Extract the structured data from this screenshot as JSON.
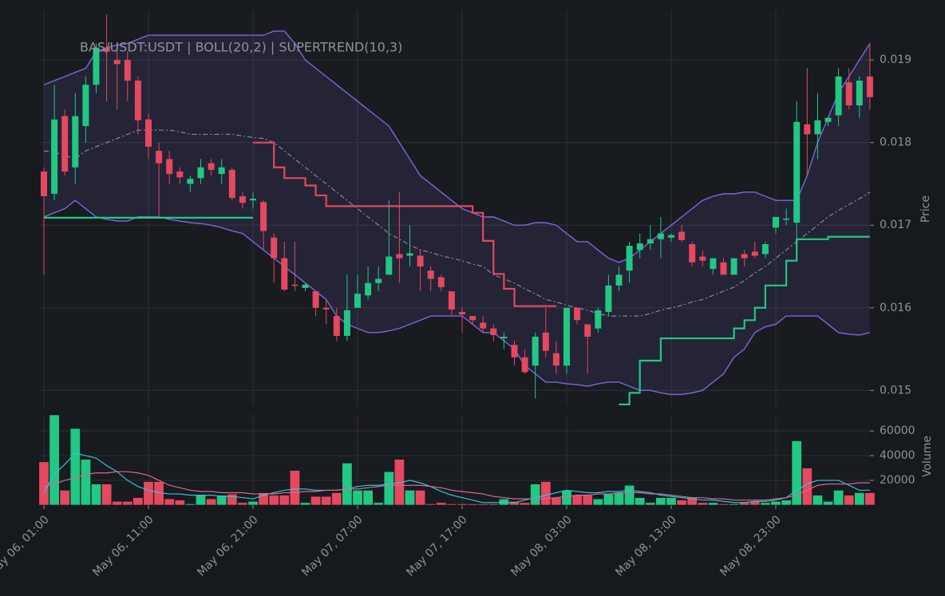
{
  "chart_data": {
    "type": "candlestick",
    "title": "BAS/USDT:USDT | BOLL(20,2) | SUPERTREND(10,3)",
    "ylabel": "Price",
    "categories": [
      "May 06, 01:00",
      null,
      null,
      null,
      null,
      null,
      null,
      null,
      null,
      null,
      "May 06, 11:00",
      null,
      null,
      null,
      null,
      null,
      null,
      null,
      null,
      null,
      "May 06, 21:00",
      null,
      null,
      null,
      null,
      null,
      null,
      null,
      null,
      null,
      "May 07, 07:00",
      null,
      null,
      null,
      null,
      null,
      null,
      null,
      null,
      null,
      "May 07, 17:00",
      null,
      null,
      null,
      null,
      null,
      null,
      null,
      null,
      null,
      "May 08, 03:00",
      null,
      null,
      null,
      null,
      null,
      null,
      null,
      null,
      null,
      "May 08, 13:00",
      null,
      null,
      null,
      null,
      null,
      null,
      null,
      null,
      null,
      "May 08, 23:00",
      null,
      null,
      null,
      null,
      null,
      null,
      null,
      null,
      null
    ],
    "open": [
      0.01765,
      0.01738,
      0.01832,
      0.0177,
      0.0182,
      0.0187,
      0.01915,
      0.019,
      0.019,
      0.01875,
      0.01828,
      0.0179,
      0.0178,
      0.01765,
      0.0175,
      0.01757,
      0.01775,
      0.01762,
      0.01767,
      0.01735,
      0.0173,
      0.01728,
      0.01685,
      0.0166,
      0.01628,
      0.01624,
      0.0162,
      0.016,
      0.0159,
      0.01566,
      0.016,
      0.01615,
      0.0163,
      0.0164,
      0.01665,
      0.01663,
      0.01663,
      0.01645,
      0.01637,
      0.0162,
      0.01595,
      0.0159,
      0.01582,
      0.01575,
      0.01563,
      0.01555,
      0.0154,
      0.0153,
      0.0157,
      0.01545,
      0.0153,
      0.016,
      0.0158,
      0.01575,
      0.01595,
      0.01627,
      0.01645,
      0.0167,
      0.01678,
      0.01683,
      0.01685,
      0.01692,
      0.01677,
      0.01662,
      0.01647,
      0.01655,
      0.0164,
      0.01665,
      0.01668,
      0.01665,
      0.01697,
      0.01707,
      0.01703,
      0.01822,
      0.0181,
      0.01825,
      0.01833,
      0.01873,
      0.01845,
      0.0188
    ],
    "high": [
      0.0177,
      0.0187,
      0.0184,
      0.0186,
      0.0188,
      0.0192,
      0.01955,
      0.0192,
      0.0191,
      0.0188,
      0.01835,
      0.018,
      0.0179,
      0.0177,
      0.0176,
      0.0178,
      0.0178,
      0.0178,
      0.0177,
      0.0174,
      0.0174,
      0.0173,
      0.0169,
      0.0168,
      0.0168,
      0.0163,
      0.0162,
      0.0161,
      0.016,
      0.0164,
      0.0164,
      0.0165,
      0.0165,
      0.0173,
      0.0174,
      0.017,
      0.0167,
      0.0165,
      0.0164,
      0.0162,
      0.016,
      0.0159,
      0.0159,
      0.0158,
      0.0157,
      0.0156,
      0.0155,
      0.0157,
      0.016,
      0.0156,
      0.016,
      0.016,
      0.0158,
      0.016,
      0.0164,
      0.0165,
      0.0168,
      0.0169,
      0.017,
      0.0171,
      0.0169,
      0.017,
      0.0168,
      0.0167,
      0.0166,
      0.0166,
      0.0166,
      0.0167,
      0.0168,
      0.0168,
      0.0171,
      0.0172,
      0.0185,
      0.0189,
      0.0186,
      0.0183,
      0.0189,
      0.0189,
      0.0188,
      0.0192
    ],
    "low": [
      0.0164,
      0.0173,
      0.0176,
      0.0175,
      0.018,
      0.0186,
      0.0185,
      0.0184,
      0.0185,
      0.0181,
      0.0178,
      0.0171,
      0.0175,
      0.0175,
      0.0174,
      0.0175,
      0.0176,
      0.0175,
      0.0173,
      0.0172,
      0.0172,
      0.0167,
      0.0163,
      0.0162,
      0.0162,
      0.0162,
      0.0159,
      0.0158,
      0.0156,
      0.0156,
      0.016,
      0.0161,
      0.0162,
      0.0164,
      0.0163,
      0.0165,
      0.0162,
      0.0162,
      0.0162,
      0.0159,
      0.0157,
      0.0158,
      0.0157,
      0.0156,
      0.0155,
      0.0153,
      0.0152,
      0.0149,
      0.0154,
      0.0152,
      0.0152,
      0.0158,
      0.0152,
      0.0157,
      0.0159,
      0.0162,
      0.0163,
      0.0166,
      0.0167,
      0.0166,
      0.0168,
      0.0168,
      0.0165,
      0.0165,
      0.0164,
      0.0164,
      0.0164,
      0.0165,
      0.0166,
      0.0166,
      0.0169,
      0.017,
      0.0168,
      0.0176,
      0.0178,
      0.0182,
      0.0182,
      0.0184,
      0.0183,
      0.0184
    ],
    "close": [
      0.01735,
      0.01828,
      0.01765,
      0.01832,
      0.0187,
      0.01915,
      0.0191,
      0.01895,
      0.01875,
      0.01827,
      0.01795,
      0.01775,
      0.01762,
      0.01758,
      0.01756,
      0.0177,
      0.01767,
      0.0177,
      0.01733,
      0.01727,
      0.01732,
      0.01693,
      0.0166,
      0.01622,
      0.01627,
      0.01628,
      0.016,
      0.01598,
      0.01566,
      0.01597,
      0.01617,
      0.0163,
      0.01635,
      0.01662,
      0.0166,
      0.01666,
      0.0165,
      0.01635,
      0.01625,
      0.01598,
      0.01592,
      0.01585,
      0.01575,
      0.01567,
      0.01565,
      0.0154,
      0.01522,
      0.01565,
      0.01548,
      0.0153,
      0.016,
      0.01585,
      0.01565,
      0.01597,
      0.01627,
      0.0164,
      0.01675,
      0.01678,
      0.01683,
      0.0169,
      0.01688,
      0.01682,
      0.01655,
      0.01657,
      0.0166,
      0.0164,
      0.0166,
      0.0166,
      0.01663,
      0.01677,
      0.0171,
      0.01708,
      0.01825,
      0.0181,
      0.01827,
      0.0183,
      0.0188,
      0.01845,
      0.01875,
      0.01855
    ],
    "up_color": "#22c784",
    "down_color": "#e5485f",
    "ylim": [
      0.0148,
      0.01961
    ],
    "yticks": [
      0.015,
      0.016,
      0.017,
      0.018,
      0.019
    ],
    "grid": true,
    "bollinger": {
      "color": "#7b68d8",
      "middle_color": "#9a9aa6",
      "upper": [
        0.0187,
        0.01875,
        0.0188,
        0.01885,
        0.0189,
        0.0191,
        0.01915,
        0.01918,
        0.0192,
        0.01925,
        0.0193,
        0.0193,
        0.0193,
        0.0193,
        0.0193,
        0.0193,
        0.0193,
        0.0193,
        0.0193,
        0.0193,
        0.0193,
        0.0193,
        0.01935,
        0.01935,
        0.0192,
        0.019,
        0.0189,
        0.0188,
        0.0187,
        0.0186,
        0.0185,
        0.0184,
        0.0183,
        0.0182,
        0.018,
        0.0178,
        0.0176,
        0.0175,
        0.0174,
        0.0173,
        0.0172,
        0.01715,
        0.0171,
        0.0171,
        0.01705,
        0.017,
        0.017,
        0.01703,
        0.01703,
        0.017,
        0.0169,
        0.0168,
        0.0168,
        0.0167,
        0.0166,
        0.01655,
        0.0166,
        0.0167,
        0.0168,
        0.0169,
        0.017,
        0.0171,
        0.0172,
        0.0173,
        0.01735,
        0.01738,
        0.01738,
        0.0174,
        0.0174,
        0.01735,
        0.0173,
        0.0173,
        0.0173,
        0.0176,
        0.018,
        0.0183,
        0.0186,
        0.0188,
        0.019,
        0.0192
      ],
      "middle": [
        0.0179,
        0.01788,
        0.01785,
        0.0178,
        0.0179,
        0.01795,
        0.018,
        0.01805,
        0.0181,
        0.01815,
        0.01815,
        0.01815,
        0.01815,
        0.01813,
        0.0181,
        0.0181,
        0.0181,
        0.0181,
        0.0181,
        0.01808,
        0.01806,
        0.01805,
        0.018,
        0.0179,
        0.0178,
        0.0177,
        0.0176,
        0.0175,
        0.0174,
        0.0173,
        0.0172,
        0.0171,
        0.017,
        0.0169,
        0.01683,
        0.01676,
        0.0167,
        0.01667,
        0.01663,
        0.0166,
        0.01657,
        0.01653,
        0.0165,
        0.0164,
        0.01635,
        0.0163,
        0.01623,
        0.01617,
        0.0161,
        0.01607,
        0.01603,
        0.016,
        0.01597,
        0.01593,
        0.0159,
        0.0159,
        0.0159,
        0.0159,
        0.01593,
        0.01597,
        0.016,
        0.01603,
        0.01607,
        0.0161,
        0.01615,
        0.0162,
        0.01625,
        0.01633,
        0.01642,
        0.0165,
        0.0166,
        0.0167,
        0.0168,
        0.0169,
        0.017,
        0.0171,
        0.01718,
        0.01725,
        0.01732,
        0.0174
      ],
      "lower": [
        0.0171,
        0.01715,
        0.0172,
        0.0173,
        0.0172,
        0.0171,
        0.01707,
        0.01705,
        0.01705,
        0.0171,
        0.0171,
        0.0171,
        0.01707,
        0.01705,
        0.01703,
        0.01702,
        0.017,
        0.01697,
        0.01693,
        0.0169,
        0.0168,
        0.0167,
        0.0166,
        0.0165,
        0.0164,
        0.0163,
        0.0162,
        0.0161,
        0.0159,
        0.0158,
        0.01575,
        0.0157,
        0.0157,
        0.01572,
        0.01575,
        0.0158,
        0.01585,
        0.0159,
        0.0159,
        0.0159,
        0.0159,
        0.0158,
        0.0157,
        0.0157,
        0.0156,
        0.0155,
        0.0153,
        0.0152,
        0.0151,
        0.0151,
        0.01508,
        0.01507,
        0.01505,
        0.01508,
        0.0151,
        0.0151,
        0.01505,
        0.015,
        0.015,
        0.01497,
        0.01495,
        0.01495,
        0.01497,
        0.015,
        0.0151,
        0.0152,
        0.0154,
        0.0155,
        0.0157,
        0.01577,
        0.0158,
        0.0159,
        0.0159,
        0.0159,
        0.0159,
        0.0158,
        0.0157,
        0.01568,
        0.01567,
        0.0157
      ]
    },
    "supertrend": {
      "up_color": "#22c784",
      "down_color": "#e5485f",
      "up": [
        0.01709,
        0.01709,
        0.01709,
        0.01709,
        0.01709,
        0.01709,
        0.01709,
        0.01709,
        0.01709,
        0.01709,
        0.01709,
        0.01709,
        0.01709,
        0.01709,
        0.01709,
        0.01709,
        0.01709,
        0.01709,
        0.01709,
        0.01709,
        0.01709,
        null,
        null,
        null,
        null,
        null,
        null,
        null,
        null,
        null,
        null,
        null,
        null,
        null,
        null,
        null,
        null,
        null,
        null,
        null,
        null,
        null,
        null,
        null,
        null,
        null,
        null,
        null,
        null,
        null,
        null,
        null,
        null,
        null,
        null,
        0.01483,
        0.01497,
        0.01536,
        0.01536,
        0.01563,
        0.01563,
        0.01563,
        0.01563,
        0.01563,
        0.01563,
        0.01563,
        0.01575,
        0.01585,
        0.016,
        0.01627,
        0.01627,
        0.01657,
        0.01683,
        0.01683,
        0.01683,
        0.01686,
        0.01686,
        0.01686,
        0.01686,
        0.01686
      ],
      "down": [
        null,
        null,
        null,
        null,
        null,
        null,
        null,
        null,
        null,
        null,
        null,
        null,
        null,
        null,
        null,
        null,
        null,
        null,
        null,
        null,
        0.018,
        0.018,
        0.0177,
        0.01757,
        0.01757,
        0.01748,
        0.01736,
        0.01723,
        0.01723,
        0.01723,
        0.01723,
        0.01723,
        0.01723,
        0.01723,
        0.01723,
        0.01723,
        0.01723,
        0.01723,
        0.01723,
        0.01723,
        0.01723,
        0.01715,
        0.01681,
        0.01641,
        0.01623,
        0.01602,
        0.01602,
        0.01602,
        0.01602,
        0.01602,
        null,
        null,
        null,
        null,
        null,
        null,
        null,
        null,
        null,
        null,
        null,
        null,
        null,
        null,
        null,
        null,
        null,
        null,
        null,
        null,
        null,
        null,
        null,
        null,
        null,
        null,
        null,
        null,
        null,
        null
      ]
    },
    "volume": {
      "ylabel": "Volume",
      "ylim": [
        0,
        73000
      ],
      "yticks": [
        20000,
        40000,
        60000
      ],
      "values": [
        35000,
        73000,
        12000,
        62000,
        37000,
        17000,
        17000,
        3000,
        3000,
        6000,
        19000,
        19000,
        5000,
        4000,
        1000,
        8000,
        5000,
        8000,
        9000,
        2000,
        3000,
        10000,
        8000,
        8000,
        28000,
        2000,
        7000,
        7000,
        10000,
        34000,
        12000,
        12000,
        2000,
        27000,
        37000,
        12000,
        12000,
        1000,
        2000,
        1000,
        1000,
        1000,
        1000,
        1000,
        5000,
        3000,
        2000,
        17000,
        19000,
        6000,
        12000,
        8000,
        8000,
        5000,
        9000,
        10000,
        16000,
        6000,
        2000,
        6000,
        6000,
        4000,
        6000,
        2000,
        2000,
        1000,
        1000,
        2000,
        3000,
        2000,
        3000,
        4000,
        52000,
        30000,
        8000,
        3000,
        12000,
        8000,
        10000,
        10000
      ],
      "ma": [
        {
          "color": "#2fc6d6",
          "values": [
            10000,
            25000,
            33000,
            42000,
            40000,
            38000,
            32000,
            27000,
            20000,
            15000,
            12000,
            10000,
            9000,
            9000,
            8000,
            8000,
            8000,
            7000,
            7000,
            6000,
            5000,
            8000,
            10000,
            12000,
            13000,
            13000,
            12000,
            12000,
            12000,
            13000,
            15000,
            16000,
            16000,
            17000,
            18000,
            20000,
            18000,
            15000,
            11000,
            8000,
            6000,
            4000,
            2000,
            2000,
            2000,
            2000,
            4000,
            6000,
            8000,
            10000,
            12000,
            11000,
            10000,
            10000,
            11000,
            11000,
            12000,
            11000,
            10000,
            8000,
            7000,
            6000,
            5000,
            4000,
            4000,
            3000,
            2000,
            2000,
            3000,
            3000,
            4000,
            6000,
            12000,
            17000,
            20000,
            20000,
            20000,
            16000,
            12000,
            12000
          ]
        },
        {
          "color": "#d86a95",
          "values": [
            15000,
            17000,
            20000,
            22000,
            25000,
            26000,
            26000,
            27000,
            27000,
            26000,
            24000,
            20000,
            16000,
            14000,
            12000,
            11000,
            11000,
            10000,
            10000,
            10000,
            9000,
            9000,
            9000,
            10000,
            10000,
            11000,
            11000,
            12000,
            12000,
            13000,
            13000,
            14000,
            15000,
            16000,
            16000,
            16000,
            16000,
            15000,
            14000,
            12000,
            11000,
            10000,
            9000,
            7000,
            6000,
            5000,
            5000,
            5000,
            5000,
            6000,
            7000,
            8000,
            8000,
            9000,
            9000,
            10000,
            10000,
            10000,
            9000,
            9000,
            8000,
            7000,
            6000,
            6000,
            5000,
            5000,
            4000,
            4000,
            4000,
            4000,
            5000,
            6000,
            8000,
            12000,
            16000,
            17000,
            17000,
            17000,
            18000,
            18000
          ]
        }
      ]
    }
  }
}
